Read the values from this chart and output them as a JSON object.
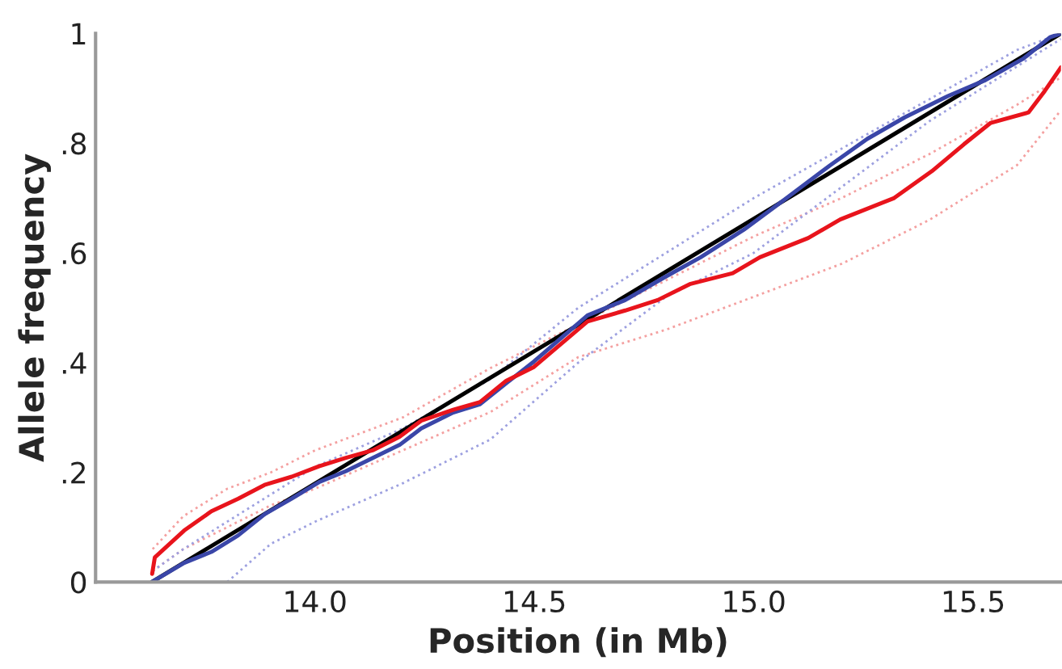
{
  "chart_data": {
    "type": "line",
    "xlabel": "Position (in Mb)",
    "ylabel": "Allele frequency",
    "xlim": [
      13.5,
      15.7
    ],
    "ylim": [
      0,
      1
    ],
    "xticks": [
      {
        "value": 14.0,
        "label": "14.0"
      },
      14.5,
      {
        "value": 15.0,
        "label": "15.0"
      },
      15.5
    ],
    "yticks": [
      0,
      {
        "value": 0.2,
        "label": ".2"
      },
      {
        "value": 0.4,
        "label": ".4"
      },
      {
        "value": 0.6,
        "label": ".6"
      },
      {
        "value": 0.8,
        "label": ".8"
      },
      1
    ],
    "grid": false,
    "legend": false,
    "series": [
      {
        "color": "#f4a0a0",
        "line_style": "dotted",
        "x": [
          13.63,
          13.7,
          13.8,
          13.9,
          14.0,
          14.2,
          14.4,
          14.6,
          14.8,
          15.0,
          15.2,
          15.4,
          15.6,
          15.7
        ],
        "values": [
          0.06,
          0.12,
          0.17,
          0.2,
          0.24,
          0.3,
          0.39,
          0.47,
          0.55,
          0.63,
          0.7,
          0.78,
          0.87,
          0.92
        ]
      },
      {
        "color": "#f4a0a0",
        "line_style": "dotted",
        "x": [
          13.63,
          13.7,
          13.8,
          13.9,
          14.0,
          14.2,
          14.4,
          14.6,
          14.8,
          15.0,
          15.2,
          15.4,
          15.6,
          15.7
        ],
        "values": [
          0.02,
          0.06,
          0.1,
          0.14,
          0.17,
          0.24,
          0.31,
          0.41,
          0.46,
          0.52,
          0.58,
          0.66,
          0.76,
          0.86
        ]
      },
      {
        "color": "#9da0e0",
        "line_style": "dotted",
        "x": [
          13.63,
          13.7,
          13.8,
          13.9,
          14.0,
          14.2,
          14.4,
          14.6,
          14.8,
          15.0,
          15.2,
          15.4,
          15.6,
          15.7
        ],
        "values": [
          0.02,
          0.06,
          0.11,
          0.16,
          0.21,
          0.28,
          0.37,
          0.5,
          0.6,
          0.7,
          0.79,
          0.88,
          0.97,
          1.0
        ]
      },
      {
        "color": "#9da0e0",
        "line_style": "dotted",
        "x": [
          13.8,
          13.9,
          14.0,
          14.2,
          14.4,
          14.6,
          14.8,
          15.0,
          15.2,
          15.4,
          15.6,
          15.7
        ],
        "values": [
          0.0,
          0.07,
          0.11,
          0.18,
          0.26,
          0.4,
          0.52,
          0.6,
          0.72,
          0.84,
          0.94,
          0.99
        ]
      },
      {
        "color": "#000000",
        "line_style": "solid",
        "x": [
          13.628,
          15.7
        ],
        "values": [
          0,
          1
        ]
      },
      {
        "color": "#3a46a8",
        "line_style": "solid",
        "x": [
          13.628,
          13.702,
          13.764,
          13.825,
          13.886,
          13.947,
          14.009,
          14.07,
          14.131,
          14.193,
          14.242,
          14.315,
          14.376,
          14.437,
          14.499,
          14.621,
          14.707,
          14.793,
          14.879,
          14.977,
          15.075,
          15.173,
          15.259,
          15.344,
          15.443,
          15.528,
          15.614,
          15.675,
          15.7
        ],
        "values": [
          0,
          0.035,
          0.055,
          0.085,
          0.124,
          0.152,
          0.182,
          0.202,
          0.226,
          0.25,
          0.28,
          0.309,
          0.324,
          0.363,
          0.402,
          0.486,
          0.514,
          0.554,
          0.592,
          0.642,
          0.7,
          0.759,
          0.808,
          0.847,
          0.886,
          0.915,
          0.954,
          0.993,
          1.0
        ]
      },
      {
        "color": "#e8141c",
        "line_style": "solid",
        "x": [
          13.629,
          13.635,
          13.702,
          13.764,
          13.825,
          13.885,
          13.947,
          14.009,
          14.069,
          14.131,
          14.193,
          14.242,
          14.315,
          14.376,
          14.436,
          14.499,
          14.621,
          14.707,
          14.781,
          14.854,
          14.952,
          15.014,
          15.124,
          15.197,
          15.32,
          15.406,
          15.479,
          15.54,
          15.626,
          15.663,
          15.688,
          15.7
        ],
        "values": [
          0.015,
          0.045,
          0.094,
          0.129,
          0.152,
          0.177,
          0.192,
          0.211,
          0.226,
          0.24,
          0.265,
          0.294,
          0.314,
          0.328,
          0.367,
          0.392,
          0.475,
          0.495,
          0.514,
          0.543,
          0.563,
          0.592,
          0.627,
          0.661,
          0.7,
          0.749,
          0.798,
          0.837,
          0.856,
          0.895,
          0.924,
          0.938
        ]
      }
    ]
  }
}
